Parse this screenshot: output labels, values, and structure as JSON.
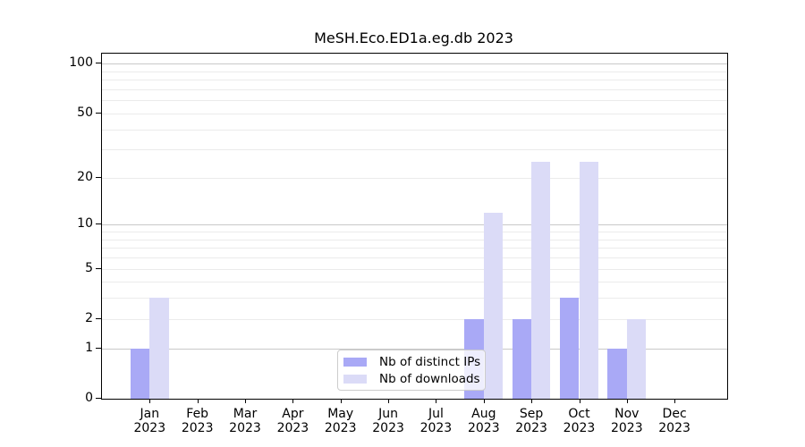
{
  "chart_data": {
    "type": "bar",
    "title": "MeSH.Eco.ED1a.eg.db 2023",
    "x_months": [
      "Jan",
      "Feb",
      "Mar",
      "Apr",
      "May",
      "Jun",
      "Jul",
      "Aug",
      "Sep",
      "Oct",
      "Nov",
      "Dec"
    ],
    "x_years": [
      "2023",
      "2023",
      "2023",
      "2023",
      "2023",
      "2023",
      "2023",
      "2023",
      "2023",
      "2023",
      "2023",
      "2023"
    ],
    "series": [
      {
        "name": "Nb of distinct IPs",
        "color": "#a9a9f6",
        "values": [
          1,
          0,
          0,
          0,
          0,
          0,
          0,
          2,
          2,
          3,
          1,
          0
        ]
      },
      {
        "name": "Nb of downloads",
        "color": "#dbdbf7",
        "values": [
          3,
          0,
          0,
          0,
          0,
          0,
          0,
          12,
          25,
          25,
          2,
          0
        ]
      }
    ],
    "y_axis": {
      "scale": "log10(1+x)",
      "ticks": [
        0,
        1,
        2,
        5,
        10,
        20,
        50,
        100
      ],
      "max_value": 115,
      "major_gridlines": [
        1,
        10,
        100
      ],
      "minor_gridlines": [
        2,
        3,
        4,
        5,
        6,
        7,
        8,
        9,
        20,
        30,
        40,
        50,
        60,
        70,
        80,
        90
      ]
    },
    "legend": {
      "position": "bottom-center"
    },
    "colors": {
      "background": "#ffffff",
      "axis": "#000000",
      "major_grid": "#c9c9c9",
      "minor_grid": "#ebebeb",
      "legend_border": "#cccccc",
      "text": "#000000"
    }
  }
}
